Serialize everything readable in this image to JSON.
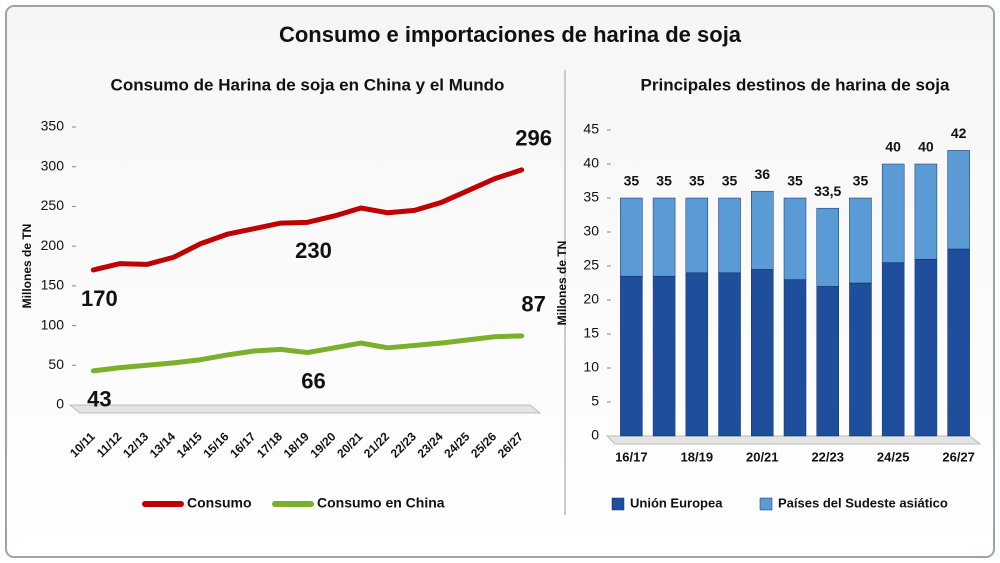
{
  "title": "Consumo e importaciones de harina de soja",
  "chart_data": [
    {
      "type": "line",
      "title": "Consumo de Harina de soja en China y el Mundo",
      "y_label": "Millones de TN",
      "categories": [
        "10/11",
        "11/12",
        "12/13",
        "13/14",
        "14/15",
        "15/16",
        "16/17",
        "17/18",
        "18/19",
        "19/20",
        "20/21",
        "21/22",
        "22/23",
        "23/24",
        "24/25",
        "25/26",
        "26/27"
      ],
      "series": [
        {
          "name": "Consumo",
          "color": "#c00000",
          "values": [
            170,
            178,
            177,
            186,
            203,
            215,
            222,
            229,
            230,
            238,
            248,
            242,
            245,
            255,
            270,
            285,
            296
          ],
          "labeled_points": [
            0,
            8,
            16
          ]
        },
        {
          "name": "Consumo en China",
          "color": "#7ab02c",
          "values": [
            43,
            47,
            50,
            53,
            57,
            63,
            68,
            70,
            66,
            72,
            78,
            72,
            75,
            78,
            82,
            86,
            87
          ],
          "labeled_points": [
            0,
            8,
            16
          ]
        }
      ],
      "ylim": [
        0,
        350
      ],
      "yticks": [
        0,
        50,
        100,
        150,
        200,
        250,
        300,
        350
      ],
      "legend": "bottom"
    },
    {
      "type": "stacked-bar",
      "title": "Principales destinos de harina de soja",
      "y_label": "Millones de TN",
      "categories": [
        "16/17",
        null,
        "18/19",
        null,
        "20/21",
        null,
        "22/23",
        null,
        "24/25",
        null,
        "26/27"
      ],
      "series": [
        {
          "name": "Unión Europea",
          "color": "#1f4e9c",
          "values": [
            23.5,
            23.5,
            24,
            24,
            24.5,
            23,
            22,
            22.5,
            25.5,
            26,
            27.5
          ]
        },
        {
          "name": "Países del Sudeste asiático",
          "color": "#5b9bd5",
          "values": [
            11.5,
            11.5,
            11,
            11,
            11.5,
            12,
            11.5,
            12.5,
            14.5,
            14,
            14.5
          ]
        }
      ],
      "totals": [
        35,
        35,
        35,
        35,
        36,
        35,
        33.5,
        35,
        40,
        40,
        42
      ],
      "total_labels": [
        "35",
        "35",
        "35",
        "35",
        "36",
        "35",
        "33,5",
        "35",
        "40",
        "40",
        "42"
      ],
      "ylim": [
        0,
        45
      ],
      "yticks": [
        0,
        5,
        10,
        15,
        20,
        25,
        30,
        35,
        40,
        45
      ],
      "legend": "bottom"
    }
  ]
}
